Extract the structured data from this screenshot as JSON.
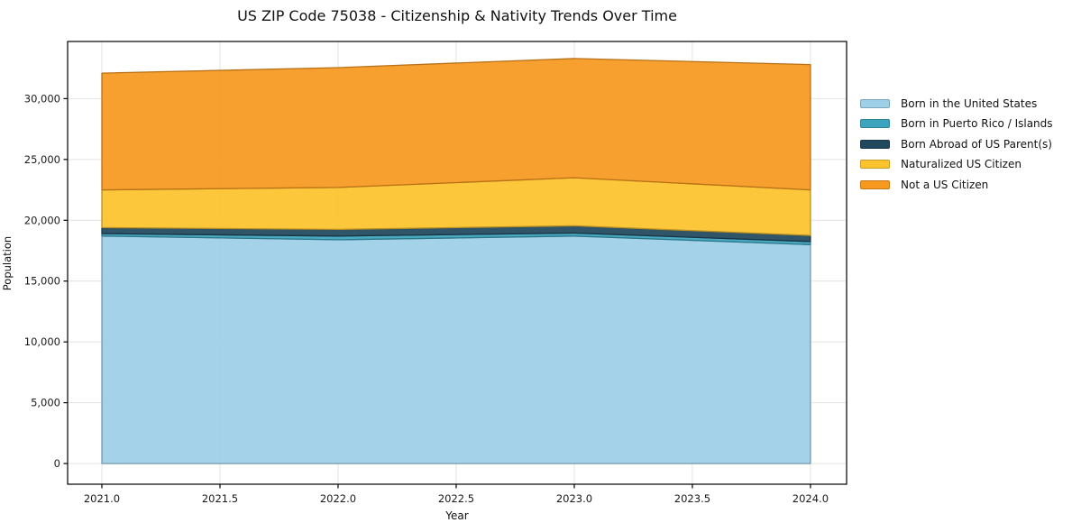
{
  "title": "US ZIP Code 75038 - Citizenship & Nativity Trends Over Time",
  "chart_data": {
    "type": "area",
    "stacked": true,
    "title": "US ZIP Code 75038 - Citizenship & Nativity Trends Over Time",
    "xlabel": "Year",
    "ylabel": "Population",
    "x": [
      2021,
      2022,
      2023,
      2024
    ],
    "series": [
      {
        "name": "Born in the United States",
        "color": "#9dd0e7",
        "values": [
          18700,
          18400,
          18700,
          18000
        ]
      },
      {
        "name": "Born in Puerto Rico / Islands",
        "color": "#3ca4bd",
        "values": [
          200,
          300,
          250,
          250
        ]
      },
      {
        "name": "Born Abroad of US Parent(s)",
        "color": "#20485c",
        "values": [
          500,
          550,
          600,
          500
        ]
      },
      {
        "name": "Naturalized US Citizen",
        "color": "#fdc32c",
        "values": [
          3100,
          3450,
          3950,
          3750
        ]
      },
      {
        "name": "Not a US Citizen",
        "color": "#f8991f",
        "values": [
          9600,
          9850,
          9800,
          10300
        ]
      }
    ],
    "stack_totals": [
      32100,
      32550,
      33300,
      32800
    ],
    "xticks": {
      "values": [
        2021.0,
        2021.5,
        2022.0,
        2022.5,
        2023.0,
        2023.5,
        2024.0
      ],
      "labels": [
        "2021.0",
        "2021.5",
        "2022.0",
        "2022.5",
        "2023.0",
        "2023.5",
        "2024.0"
      ]
    },
    "yticks": {
      "values": [
        0,
        5000,
        10000,
        15000,
        20000,
        25000,
        30000
      ],
      "labels": [
        "0",
        "5,000",
        "10,000",
        "15,000",
        "20,000",
        "25,000",
        "30,000"
      ]
    },
    "xlim": [
      2020.855,
      2024.153
    ],
    "ylim": [
      -1700,
      34700
    ],
    "grid": true,
    "legend_position": "right-outside"
  },
  "colors": {
    "background": "#ffffff",
    "grid": "#e4e4e4",
    "spine": "#000000",
    "text": "#1a1a1a"
  }
}
